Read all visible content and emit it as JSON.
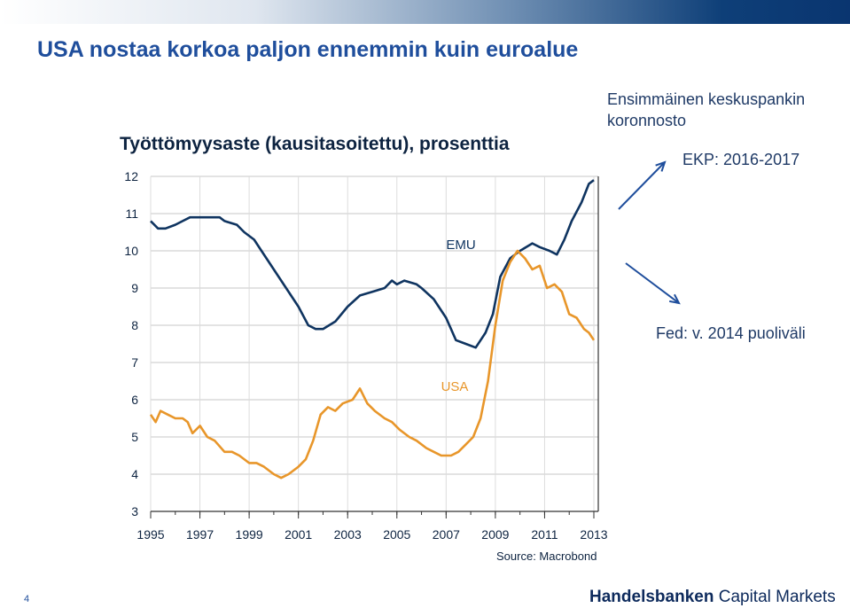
{
  "slide": {
    "title": "USA nostaa korkoa paljon ennemmin kuin euroalue",
    "page_number": "4",
    "brand_bold": "Handelsbanken",
    "brand_rest": "Capital Markets"
  },
  "annotations": {
    "first_hike_line1": "Ensimmäinen  keskuspankin",
    "first_hike_line2": "koronnosto",
    "ecb": "EKP: 2016-2017",
    "fed": "Fed: v. 2014 puoliväli"
  },
  "colors": {
    "emu": "#0f3460",
    "usa": "#e8962a",
    "accent": "#1f4e9c"
  },
  "chart_data": {
    "type": "line",
    "title": "Työttömyysaste (kausitasoitettu), prosenttia",
    "source": "Source: Macrobond",
    "xlabel": "",
    "ylabel": "",
    "xlim": [
      1995,
      2013.0
    ],
    "ylim": [
      3,
      12
    ],
    "x_ticks": [
      "1995",
      "1997",
      "1999",
      "2001",
      "2003",
      "2005",
      "2007",
      "2009",
      "2011",
      "2013"
    ],
    "y_ticks": [
      "3",
      "4",
      "5",
      "6",
      "7",
      "8",
      "9",
      "10",
      "11",
      "12"
    ],
    "grid": true,
    "series": [
      {
        "name": "EMU",
        "points": [
          [
            1995.0,
            10.8
          ],
          [
            1995.3,
            10.6
          ],
          [
            1995.6,
            10.6
          ],
          [
            1996.0,
            10.7
          ],
          [
            1996.3,
            10.8
          ],
          [
            1996.6,
            10.9
          ],
          [
            1997.0,
            10.9
          ],
          [
            1997.5,
            10.9
          ],
          [
            1997.8,
            10.9
          ],
          [
            1998.0,
            10.8
          ],
          [
            1998.5,
            10.7
          ],
          [
            1998.8,
            10.5
          ],
          [
            1999.2,
            10.3
          ],
          [
            1999.5,
            10.0
          ],
          [
            2000.0,
            9.5
          ],
          [
            2000.5,
            9.0
          ],
          [
            2001.0,
            8.5
          ],
          [
            2001.4,
            8.0
          ],
          [
            2001.7,
            7.9
          ],
          [
            2002.0,
            7.9
          ],
          [
            2002.5,
            8.1
          ],
          [
            2003.0,
            8.5
          ],
          [
            2003.5,
            8.8
          ],
          [
            2004.0,
            8.9
          ],
          [
            2004.5,
            9.0
          ],
          [
            2004.8,
            9.2
          ],
          [
            2005.0,
            9.1
          ],
          [
            2005.3,
            9.2
          ],
          [
            2005.8,
            9.1
          ],
          [
            2006.0,
            9.0
          ],
          [
            2006.5,
            8.7
          ],
          [
            2007.0,
            8.2
          ],
          [
            2007.4,
            7.6
          ],
          [
            2007.8,
            7.5
          ],
          [
            2008.2,
            7.4
          ],
          [
            2008.6,
            7.8
          ],
          [
            2008.9,
            8.3
          ],
          [
            2009.2,
            9.3
          ],
          [
            2009.6,
            9.8
          ],
          [
            2010.0,
            10.0
          ],
          [
            2010.5,
            10.2
          ],
          [
            2010.8,
            10.1
          ],
          [
            2011.2,
            10.0
          ],
          [
            2011.5,
            9.9
          ],
          [
            2011.8,
            10.3
          ],
          [
            2012.1,
            10.8
          ],
          [
            2012.5,
            11.3
          ],
          [
            2012.8,
            11.8
          ],
          [
            2013.0,
            11.9
          ]
        ]
      },
      {
        "name": "USA",
        "points": [
          [
            1995.0,
            5.6
          ],
          [
            1995.2,
            5.4
          ],
          [
            1995.4,
            5.7
          ],
          [
            1995.7,
            5.6
          ],
          [
            1996.0,
            5.5
          ],
          [
            1996.3,
            5.5
          ],
          [
            1996.5,
            5.4
          ],
          [
            1996.7,
            5.1
          ],
          [
            1997.0,
            5.3
          ],
          [
            1997.3,
            5.0
          ],
          [
            1997.6,
            4.9
          ],
          [
            1998.0,
            4.6
          ],
          [
            1998.3,
            4.6
          ],
          [
            1998.6,
            4.5
          ],
          [
            1999.0,
            4.3
          ],
          [
            1999.3,
            4.3
          ],
          [
            1999.6,
            4.2
          ],
          [
            2000.0,
            4.0
          ],
          [
            2000.3,
            3.9
          ],
          [
            2000.6,
            4.0
          ],
          [
            2001.0,
            4.2
          ],
          [
            2001.3,
            4.4
          ],
          [
            2001.6,
            4.9
          ],
          [
            2001.9,
            5.6
          ],
          [
            2002.2,
            5.8
          ],
          [
            2002.5,
            5.7
          ],
          [
            2002.8,
            5.9
          ],
          [
            2003.2,
            6.0
          ],
          [
            2003.5,
            6.3
          ],
          [
            2003.8,
            5.9
          ],
          [
            2004.1,
            5.7
          ],
          [
            2004.5,
            5.5
          ],
          [
            2004.8,
            5.4
          ],
          [
            2005.1,
            5.2
          ],
          [
            2005.5,
            5.0
          ],
          [
            2005.8,
            4.9
          ],
          [
            2006.2,
            4.7
          ],
          [
            2006.5,
            4.6
          ],
          [
            2006.8,
            4.5
          ],
          [
            2007.2,
            4.5
          ],
          [
            2007.5,
            4.6
          ],
          [
            2007.8,
            4.8
          ],
          [
            2008.1,
            5.0
          ],
          [
            2008.4,
            5.5
          ],
          [
            2008.7,
            6.5
          ],
          [
            2009.0,
            8.0
          ],
          [
            2009.3,
            9.2
          ],
          [
            2009.6,
            9.7
          ],
          [
            2009.9,
            10.0
          ],
          [
            2010.2,
            9.8
          ],
          [
            2010.5,
            9.5
          ],
          [
            2010.8,
            9.6
          ],
          [
            2011.1,
            9.0
          ],
          [
            2011.4,
            9.1
          ],
          [
            2011.7,
            8.9
          ],
          [
            2012.0,
            8.3
          ],
          [
            2012.3,
            8.2
          ],
          [
            2012.6,
            7.9
          ],
          [
            2012.8,
            7.8
          ],
          [
            2013.0,
            7.6
          ]
        ]
      }
    ],
    "annotations": [
      {
        "text": "EMU"
      },
      {
        "text": "USA"
      }
    ]
  }
}
